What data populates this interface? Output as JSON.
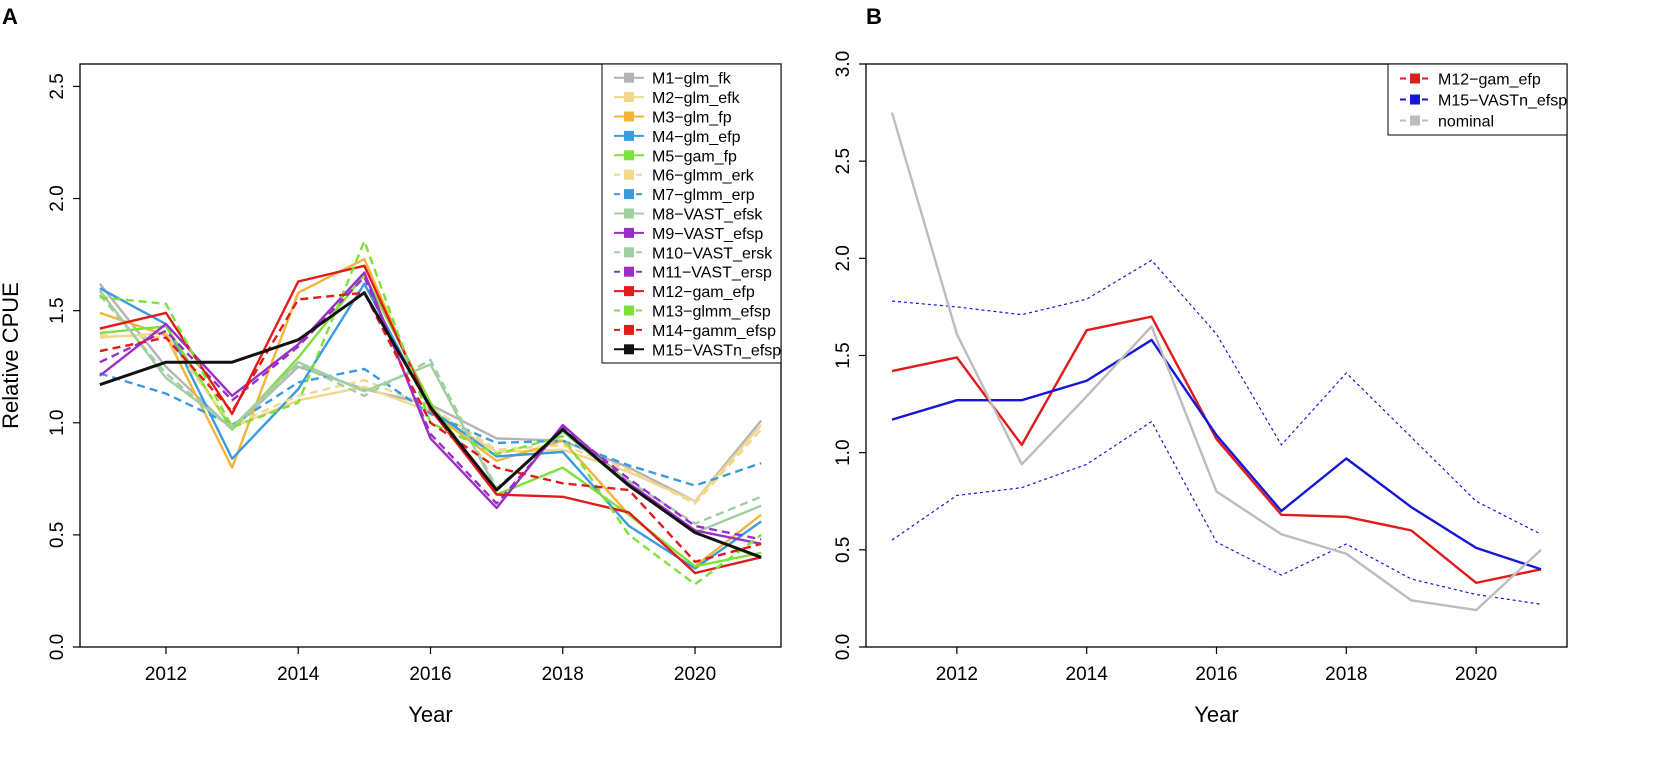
{
  "chart_data": [
    {
      "panel": "A",
      "type": "line",
      "xlabel": "Year",
      "ylabel": "Relative CPUE",
      "xlim": [
        2010.7,
        2021.3
      ],
      "ylim": [
        0,
        2.6
      ],
      "xticks": [
        "2012",
        "2014",
        "2016",
        "2018",
        "2020"
      ],
      "yticks": [
        "0.0",
        "0.5",
        "1.0",
        "1.5",
        "2.0",
        "2.5"
      ],
      "legend_position": "top-right",
      "x": [
        2011,
        2012,
        2013,
        2014,
        2015,
        2016,
        2017,
        2018,
        2019,
        2020,
        2021
      ],
      "series": [
        {
          "name": "M1−glm_fk",
          "color": "#b4b4b4",
          "dash": "solid",
          "values": [
            1.62,
            1.25,
            0.97,
            1.25,
            1.15,
            1.08,
            0.93,
            0.92,
            0.8,
            0.65,
            1.01
          ]
        },
        {
          "name": "M2−glm_efk",
          "color": "#f2d88c",
          "dash": "solid",
          "values": [
            1.38,
            1.4,
            0.98,
            1.1,
            1.16,
            1.05,
            0.87,
            0.88,
            0.78,
            0.65,
            0.99
          ]
        },
        {
          "name": "M3−glm_fp",
          "color": "#f2b53a",
          "dash": "solid",
          "values": [
            1.49,
            1.39,
            0.8,
            1.58,
            1.73,
            1.05,
            0.83,
            0.92,
            0.59,
            0.36,
            0.59
          ]
        },
        {
          "name": "M4−glm_efp",
          "color": "#3b9be0",
          "dash": "solid",
          "values": [
            1.6,
            1.44,
            0.84,
            1.15,
            1.62,
            1.06,
            0.85,
            0.87,
            0.54,
            0.35,
            0.56
          ]
        },
        {
          "name": "M5−gam_fp",
          "color": "#7ee03a",
          "dash": "solid",
          "values": [
            1.4,
            1.43,
            0.97,
            1.29,
            1.66,
            1.09,
            0.68,
            0.8,
            0.59,
            0.36,
            0.42
          ]
        },
        {
          "name": "M6−glmm_erk",
          "color": "#f2d88c",
          "dash": "dashed",
          "values": [
            1.39,
            1.38,
            0.99,
            1.12,
            1.19,
            1.07,
            0.88,
            0.9,
            0.79,
            0.64,
            0.97
          ]
        },
        {
          "name": "M7−glmm_erp",
          "color": "#3b9be0",
          "dash": "dashed",
          "values": [
            1.22,
            1.13,
            0.99,
            1.18,
            1.24,
            1.04,
            0.91,
            0.92,
            0.81,
            0.72,
            0.82
          ]
        },
        {
          "name": "M8−VAST_efsk",
          "color": "#a2cfa2",
          "dash": "solid",
          "values": [
            1.59,
            1.2,
            0.98,
            1.27,
            1.14,
            1.26,
            0.7,
            0.96,
            0.72,
            0.51,
            0.63
          ]
        },
        {
          "name": "M9−VAST_efsp",
          "color": "#9a2fc8",
          "dash": "solid",
          "values": [
            1.21,
            1.44,
            1.12,
            1.35,
            1.67,
            0.93,
            0.62,
            0.99,
            0.73,
            0.52,
            0.46
          ]
        },
        {
          "name": "M10−VAST_ersk",
          "color": "#a2cfa2",
          "dash": "dashed",
          "values": [
            1.57,
            1.22,
            0.97,
            1.26,
            1.12,
            1.28,
            0.71,
            0.96,
            0.74,
            0.55,
            0.67
          ]
        },
        {
          "name": "M11−VAST_ersp",
          "color": "#9a2fc8",
          "dash": "dashed",
          "values": [
            1.27,
            1.41,
            1.1,
            1.34,
            1.65,
            0.95,
            0.64,
            0.98,
            0.75,
            0.54,
            0.48
          ]
        },
        {
          "name": "M12−gam_efp",
          "color": "#e21a1a",
          "dash": "solid",
          "values": [
            1.42,
            1.49,
            1.04,
            1.63,
            1.7,
            1.06,
            0.68,
            0.67,
            0.6,
            0.33,
            0.4
          ]
        },
        {
          "name": "M13−glmm_efsp",
          "color": "#7ee03a",
          "dash": "dashed",
          "values": [
            1.56,
            1.53,
            0.98,
            1.09,
            1.81,
            1.0,
            0.86,
            0.94,
            0.5,
            0.28,
            0.5
          ]
        },
        {
          "name": "M14−gamm_efsp",
          "color": "#e21a1a",
          "dash": "dashed",
          "values": [
            1.32,
            1.38,
            1.05,
            1.55,
            1.58,
            1.0,
            0.8,
            0.73,
            0.7,
            0.38,
            0.46
          ]
        },
        {
          "name": "M15−VASTn_efsp",
          "color": "#111111",
          "dash": "solid",
          "width": 3,
          "values": [
            1.17,
            1.27,
            1.27,
            1.37,
            1.58,
            1.07,
            0.7,
            0.97,
            0.72,
            0.51,
            0.4
          ]
        }
      ]
    },
    {
      "panel": "B",
      "type": "line",
      "xlabel": "Year",
      "ylabel": "",
      "xlim": [
        2010.6,
        2021.4
      ],
      "ylim": [
        0,
        3.0
      ],
      "xticks": [
        "2012",
        "2014",
        "2016",
        "2018",
        "2020"
      ],
      "yticks": [
        "0.0",
        "0.5",
        "1.0",
        "1.5",
        "2.0",
        "2.5",
        "3.0"
      ],
      "legend_position": "top-right",
      "x": [
        2011,
        2012,
        2013,
        2014,
        2015,
        2016,
        2017,
        2018,
        2019,
        2020,
        2021
      ],
      "series": [
        {
          "name": "M12−gam_efp",
          "color": "#e21a1a",
          "dash": "solid",
          "values": [
            1.42,
            1.49,
            1.04,
            1.63,
            1.7,
            1.07,
            0.68,
            0.67,
            0.6,
            0.33,
            0.4
          ]
        },
        {
          "name": "M15−VASTn_efsp",
          "color": "#1616d6",
          "dash": "solid",
          "values": [
            1.17,
            1.27,
            1.27,
            1.37,
            1.58,
            1.09,
            0.7,
            0.97,
            0.72,
            0.51,
            0.4
          ]
        },
        {
          "name": "nominal",
          "color": "#bdbdbd",
          "dash": "solid",
          "values": [
            2.75,
            1.61,
            0.94,
            1.29,
            1.65,
            0.8,
            0.58,
            0.48,
            0.24,
            0.19,
            0.5
          ]
        }
      ],
      "bands": [
        {
          "of": "M15−VASTn_efsp",
          "bound": "upper",
          "color": "#1616d6",
          "values": [
            1.78,
            1.75,
            1.71,
            1.79,
            1.99,
            1.61,
            1.04,
            1.41,
            1.08,
            0.75,
            0.58
          ]
        },
        {
          "of": "M15−VASTn_efsp",
          "bound": "lower",
          "color": "#1616d6",
          "values": [
            0.55,
            0.78,
            0.82,
            0.94,
            1.16,
            0.54,
            0.37,
            0.53,
            0.35,
            0.27,
            0.22
          ]
        }
      ]
    }
  ],
  "panel_labels": [
    "A",
    "B"
  ]
}
